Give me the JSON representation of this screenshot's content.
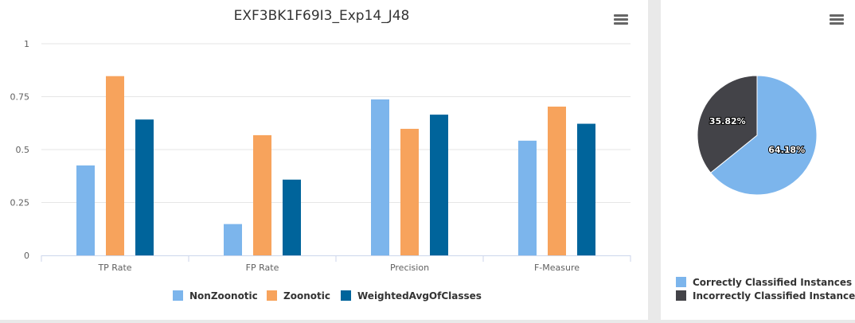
{
  "chart_data": [
    {
      "type": "bar",
      "title": "EXF3BK1F69I3_Exp14_J48",
      "categories": [
        "TP Rate",
        "FP Rate",
        "Precision",
        "F-Measure"
      ],
      "series": [
        {
          "name": "NonZoonotic",
          "color": "#7cb5ec",
          "values": [
            0.425,
            0.148,
            0.737,
            0.542
          ]
        },
        {
          "name": "Zoonotic",
          "color": "#f7a35c",
          "values": [
            0.847,
            0.568,
            0.598,
            0.703
          ]
        },
        {
          "name": "WeightedAvgOfClasses",
          "color": "#00649b",
          "values": [
            0.642,
            0.358,
            0.665,
            0.622
          ]
        }
      ],
      "ylim": [
        0,
        1
      ],
      "yticks": [
        "0",
        "0.25",
        "0.5",
        "0.75",
        "1"
      ],
      "ytick_values": [
        0,
        0.25,
        0.5,
        0.75,
        1
      ],
      "grid": true,
      "legend_position": "bottom-center"
    },
    {
      "type": "pie",
      "slices": [
        {
          "name": "Correctly Classified Instances",
          "value": 64.18,
          "label": "64.18%",
          "color": "#7cb5ec"
        },
        {
          "name": "Incorrectly Classified Instances",
          "value": 35.82,
          "label": "35.82%",
          "color": "#434348"
        }
      ],
      "legend_position": "bottom-center"
    }
  ]
}
